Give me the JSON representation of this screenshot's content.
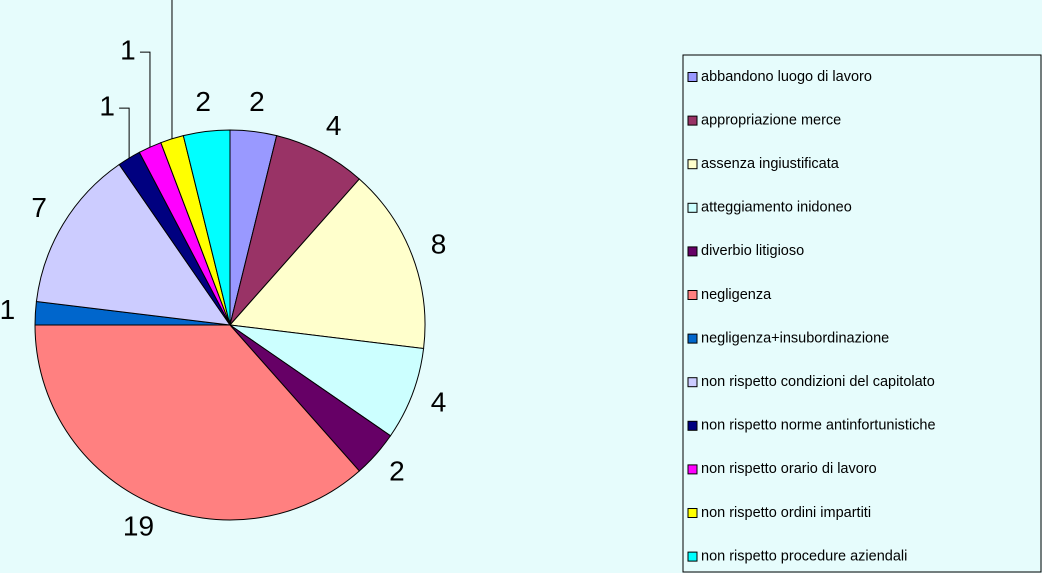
{
  "chart_data": {
    "type": "pie",
    "categories": [
      "abbandono luogo di lavoro",
      "appropriazione merce",
      "assenza ingiustificata",
      "atteggiamento inidoneo",
      "diverbio litigioso",
      "negligenza",
      "negligenza+insubordinazione",
      "non rispetto condizioni del capitolato",
      "non rispetto norme antinfortunistiche",
      "non rispetto orario di lavoro",
      "non rispetto ordini impartiti",
      "non rispetto procedure aziendali"
    ],
    "values": [
      2,
      4,
      8,
      4,
      2,
      19,
      1,
      7,
      1,
      1,
      1,
      2
    ],
    "colors": [
      "#9999ff",
      "#993366",
      "#ffffcc",
      "#ccffff",
      "#660066",
      "#ff8080",
      "#0066cc",
      "#ccccff",
      "#000080",
      "#ff00ff",
      "#ffff00",
      "#00ffff"
    ],
    "legend": "right"
  }
}
